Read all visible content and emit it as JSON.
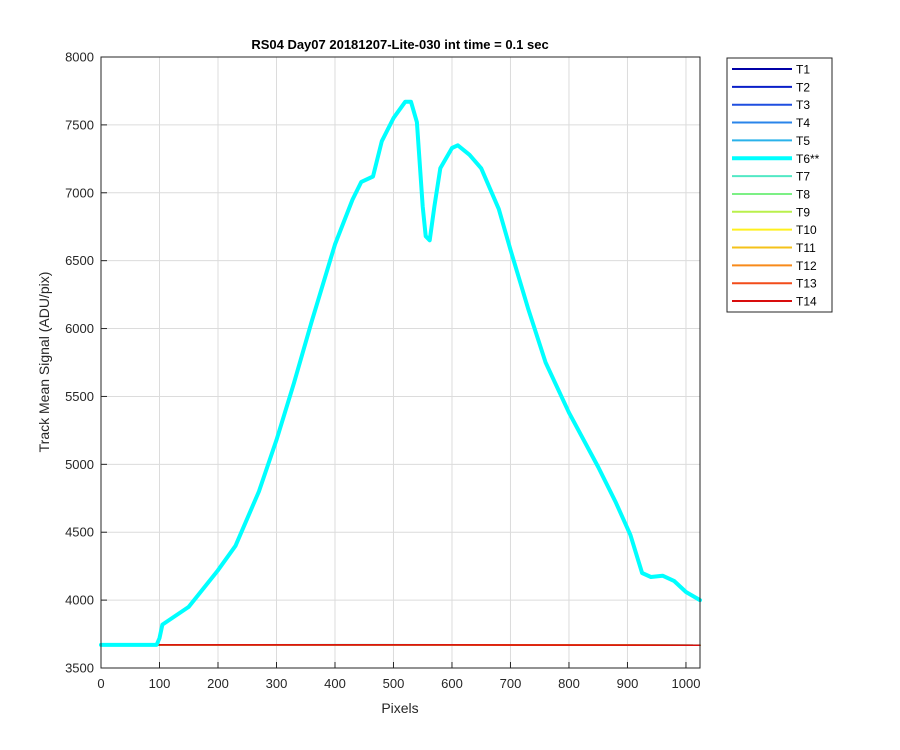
{
  "chart_data": {
    "type": "line",
    "title": "RS04 Day07 20181207-Lite-030 int time = 0.1 sec",
    "xlabel": "Pixels",
    "ylabel": "Track Mean Signal (ADU/pix)",
    "xlim": [
      0,
      1024
    ],
    "ylim": [
      3500,
      8000
    ],
    "xticks": [
      0,
      100,
      200,
      300,
      400,
      500,
      600,
      700,
      800,
      900,
      1000
    ],
    "yticks": [
      3500,
      4000,
      4500,
      5000,
      5500,
      6000,
      6500,
      7000,
      7500,
      8000
    ],
    "grid": true,
    "legend_position": "outside-right",
    "highlighted_series": "T6**",
    "series": [
      {
        "name": "T1",
        "color": "#0000a6",
        "x": [
          0,
          100,
          400,
          600,
          1024
        ],
        "y": [
          3668,
          3670,
          3670,
          3670,
          3668
        ]
      },
      {
        "name": "T2",
        "color": "#0a1fc8",
        "x": [
          0,
          100,
          400,
          600,
          1024
        ],
        "y": [
          3668,
          3670,
          3670,
          3670,
          3668
        ]
      },
      {
        "name": "T3",
        "color": "#1f4fe0",
        "x": [
          0,
          100,
          400,
          600,
          1024
        ],
        "y": [
          3668,
          3670,
          3670,
          3670,
          3668
        ]
      },
      {
        "name": "T4",
        "color": "#2a84ea",
        "x": [
          0,
          100,
          400,
          600,
          1024
        ],
        "y": [
          3668,
          3670,
          3670,
          3670,
          3668
        ]
      },
      {
        "name": "T5",
        "color": "#2ab2ea",
        "x": [
          0,
          100,
          400,
          600,
          1024
        ],
        "y": [
          3668,
          3670,
          3670,
          3670,
          3668
        ]
      },
      {
        "name": "T6**",
        "color": "#00ffff",
        "bold": true,
        "x": [
          0,
          95,
          100,
          105,
          150,
          200,
          230,
          270,
          300,
          330,
          360,
          400,
          430,
          445,
          465,
          480,
          500,
          520,
          530,
          540,
          550,
          555,
          562,
          570,
          580,
          600,
          610,
          630,
          650,
          680,
          700,
          730,
          760,
          800,
          850,
          880,
          905,
          925,
          940,
          960,
          980,
          1000,
          1024
        ],
        "y": [
          3670,
          3670,
          3720,
          3820,
          3950,
          4220,
          4400,
          4800,
          5180,
          5600,
          6050,
          6620,
          6950,
          7080,
          7120,
          7380,
          7550,
          7670,
          7670,
          7520,
          6900,
          6680,
          6650,
          6900,
          7180,
          7330,
          7350,
          7280,
          7180,
          6880,
          6580,
          6150,
          5750,
          5380,
          4980,
          4720,
          4480,
          4200,
          4170,
          4180,
          4140,
          4060,
          4000
        ]
      },
      {
        "name": "T7",
        "color": "#52e8c4",
        "x": [
          0,
          100,
          400,
          600,
          1024
        ],
        "y": [
          3668,
          3670,
          3672,
          3671,
          3669
        ]
      },
      {
        "name": "T8",
        "color": "#7cf085",
        "x": [
          0,
          100,
          400,
          600,
          1024
        ],
        "y": [
          3668,
          3670,
          3671,
          3670,
          3668
        ]
      },
      {
        "name": "T9",
        "color": "#b9f04c",
        "x": [
          0,
          100,
          400,
          600,
          1024
        ],
        "y": [
          3668,
          3670,
          3670,
          3670,
          3668
        ]
      },
      {
        "name": "T10",
        "color": "#fff01e",
        "x": [
          0,
          100,
          400,
          600,
          1024
        ],
        "y": [
          3668,
          3670,
          3670,
          3670,
          3668
        ]
      },
      {
        "name": "T11",
        "color": "#f4c21a",
        "x": [
          0,
          100,
          400,
          600,
          1024
        ],
        "y": [
          3668,
          3670,
          3670,
          3670,
          3668
        ]
      },
      {
        "name": "T12",
        "color": "#f88a1a",
        "x": [
          0,
          100,
          400,
          600,
          1024
        ],
        "y": [
          3668,
          3670,
          3670,
          3670,
          3668
        ]
      },
      {
        "name": "T13",
        "color": "#f24c1a",
        "x": [
          0,
          100,
          400,
          600,
          1024
        ],
        "y": [
          3668,
          3670,
          3670,
          3670,
          3668
        ]
      },
      {
        "name": "T14",
        "color": "#d90d0d",
        "x": [
          0,
          100,
          400,
          600,
          1024
        ],
        "y": [
          3668,
          3670,
          3670,
          3670,
          3668
        ]
      }
    ]
  }
}
